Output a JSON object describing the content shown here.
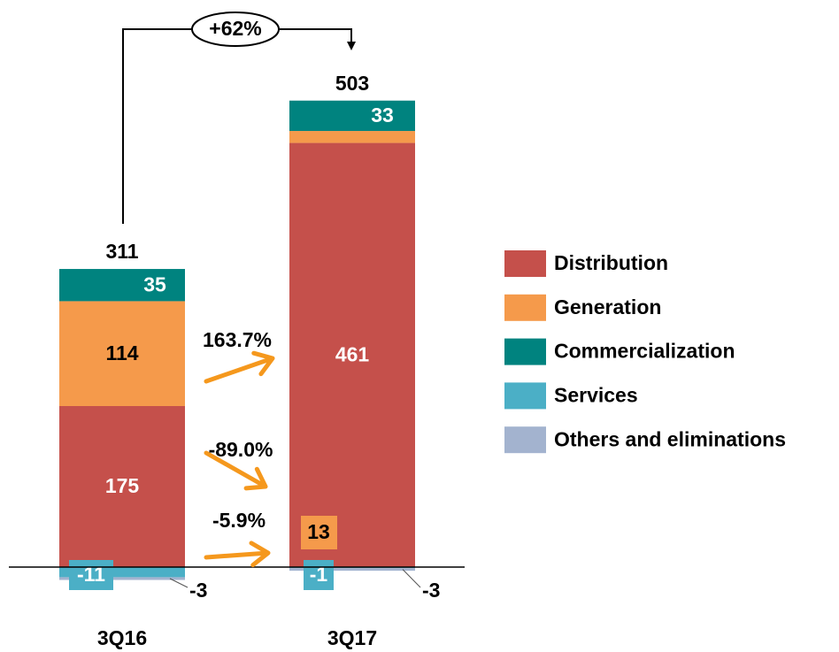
{
  "chart_data": {
    "type": "stacked_bar",
    "categories": [
      "3Q16",
      "3Q17"
    ],
    "series": [
      {
        "name": "Distribution",
        "color": "#c5504b",
        "values": [
          175,
          461
        ]
      },
      {
        "name": "Generation",
        "color": "#f59a4b",
        "values": [
          114,
          13
        ]
      },
      {
        "name": "Commercialization",
        "color": "#00837f",
        "values": [
          35,
          33
        ]
      },
      {
        "name": "Services",
        "color": "#4bafc6",
        "values": [
          -11,
          -1
        ]
      },
      {
        "name": "Others and eliminations",
        "color": "#a3b3cf",
        "values": [
          -3,
          -3
        ]
      }
    ],
    "totals": [
      311,
      503
    ],
    "total_change": "+62%",
    "segment_changes": [
      "163.7%",
      "-89.0%",
      "-5.9%"
    ],
    "arrow_color": "#f5981d"
  }
}
